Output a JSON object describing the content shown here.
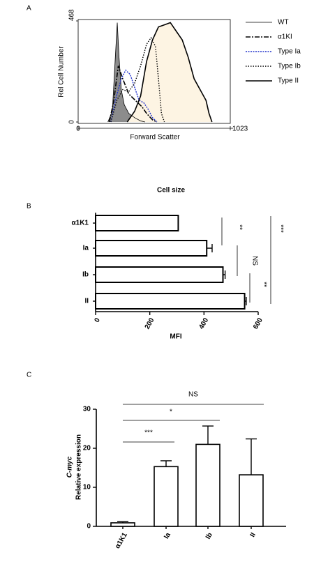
{
  "chart_data": [
    {
      "type": "line",
      "panel_label": "A",
      "xlabel": "Forward Scatter",
      "ylabel": "Rel Cell Number",
      "xlim": [
        0,
        1023
      ],
      "xticks": [
        0,
        1023
      ],
      "ylim": [
        0,
        468
      ],
      "yticks": [
        0,
        468
      ],
      "series": [
        {
          "name": "WT",
          "color": "#000000",
          "fill": "#8c8c8c",
          "x": [
            200,
            230,
            250,
            263,
            275,
            290,
            310,
            340,
            380,
            420,
            450
          ],
          "values": [
            0,
            50,
            300,
            460,
            300,
            150,
            80,
            40,
            20,
            5,
            0
          ]
        },
        {
          "name": "α1KI",
          "color": "#000000",
          "x": [
            210,
            240,
            270,
            300,
            340,
            370,
            400,
            430,
            460,
            500,
            530
          ],
          "values": [
            0,
            100,
            260,
            200,
            130,
            110,
            90,
            70,
            40,
            10,
            0
          ]
        },
        {
          "name": "Type Ia",
          "color": "#2233cc",
          "x": [
            220,
            250,
            290,
            320,
            350,
            380,
            410,
            440,
            470,
            500,
            530
          ],
          "values": [
            0,
            100,
            200,
            240,
            220,
            160,
            100,
            90,
            60,
            20,
            0
          ]
        },
        {
          "name": "Type Ib",
          "color": "#000000",
          "x": [
            220,
            260,
            300,
            340,
            380,
            420,
            460,
            490,
            520,
            540,
            560,
            580
          ],
          "values": [
            0,
            100,
            150,
            140,
            180,
            260,
            360,
            390,
            350,
            200,
            40,
            0
          ]
        },
        {
          "name": "Type II",
          "color": "#000000",
          "fill": "#fdf4e3",
          "x": [
            330,
            380,
            420,
            460,
            500,
            540,
            580,
            620,
            660,
            700,
            740,
            780,
            820,
            860,
            880,
            900
          ],
          "values": [
            0,
            50,
            120,
            280,
            380,
            440,
            450,
            460,
            420,
            380,
            300,
            200,
            150,
            100,
            40,
            0
          ]
        }
      ]
    },
    {
      "type": "hbar",
      "panel_label": "B",
      "title": "Cell size",
      "xlabel": "MFI",
      "categories": [
        "α1K1",
        "Ia",
        "Ib",
        "II"
      ],
      "values": [
        305,
        410,
        470,
        550
      ],
      "errors": [
        0,
        20,
        8,
        6
      ],
      "color": "#ffffff",
      "xlim": [
        0,
        600
      ],
      "xticks": [
        0,
        200,
        400,
        600
      ],
      "annotations": [
        "**",
        "NS",
        "**",
        "***"
      ]
    },
    {
      "type": "bar",
      "panel_label": "C",
      "ylabel": [
        "C-myc",
        "Relative expression"
      ],
      "categories": [
        "α1K1",
        "Ia",
        "Ib",
        "II"
      ],
      "values": [
        0.9,
        15.3,
        21,
        13.2
      ],
      "errors": [
        0.3,
        1.5,
        4.7,
        9.2
      ],
      "color": "#ffffff",
      "ylim": [
        0,
        30
      ],
      "yticks": [
        0,
        10,
        20,
        30
      ],
      "annotations": [
        "***",
        "*",
        "NS"
      ]
    }
  ]
}
